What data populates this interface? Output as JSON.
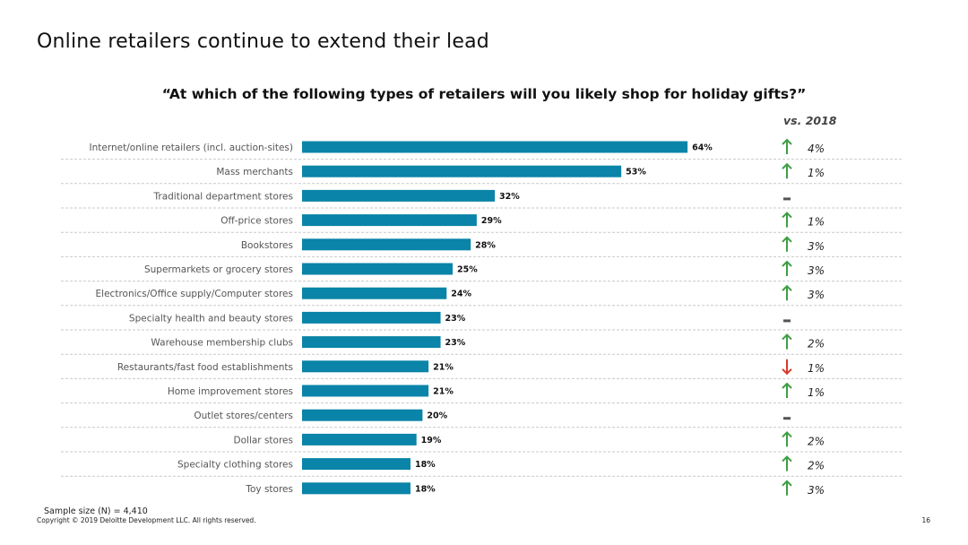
{
  "slide": {
    "title": "Online retailers continue to extend their lead",
    "question": "“At which of the following types of retailers will you likely shop for holiday gifts?”",
    "comparison_label": "vs. 2018",
    "sample_size": "Sample size (N) = 4,410",
    "copyright": "Copyright © 2019 Deloitte Development LLC. All rights reserved.",
    "page_number": "16"
  },
  "colors": {
    "bar": "#0a84a8",
    "up": "#3e9e44",
    "down": "#d93a2b",
    "flat": "#555555",
    "divider": "#c9c9c9"
  },
  "chart_data": {
    "type": "bar",
    "orientation": "horizontal",
    "title": "“At which of the following types of retailers will you likely shop for holiday gifts?”",
    "xlim": [
      0,
      100
    ],
    "grid": false,
    "legend": "none",
    "categories": [
      "Internet/online retailers (incl. auction-sites)",
      "Mass merchants",
      "Traditional department stores",
      "Off-price stores",
      "Bookstores",
      "Supermarkets or grocery stores",
      "Electronics/Office supply/Computer stores",
      "Specialty health and beauty stores",
      "Warehouse membership clubs",
      "Restaurants/fast food establishments",
      "Home improvement stores",
      "Outlet stores/centers",
      "Dollar stores",
      "Specialty clothing stores",
      "Toy stores"
    ],
    "values": [
      64,
      53,
      32,
      29,
      28,
      25,
      24,
      23,
      23,
      21,
      21,
      20,
      19,
      18,
      18
    ],
    "value_labels": [
      "64%",
      "53%",
      "32%",
      "29%",
      "28%",
      "25%",
      "24%",
      "23%",
      "23%",
      "21%",
      "21%",
      "20%",
      "19%",
      "18%",
      "18%"
    ],
    "change_vs_2018": {
      "direction": [
        "up",
        "up",
        "flat",
        "up",
        "up",
        "up",
        "up",
        "flat",
        "up",
        "down",
        "up",
        "flat",
        "up",
        "up",
        "up"
      ],
      "labels": [
        "4%",
        "1%",
        "",
        "1%",
        "3%",
        "3%",
        "3%",
        "",
        "2%",
        "1%",
        "1%",
        "",
        "2%",
        "2%",
        "3%"
      ]
    }
  }
}
